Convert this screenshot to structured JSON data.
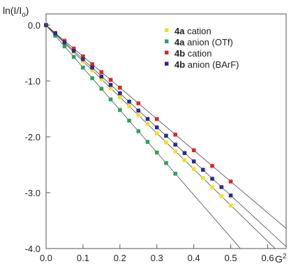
{
  "chart_data": {
    "type": "scatter",
    "ylabel_parts": {
      "main": "ln(I/I",
      "sub": "o",
      "close": ")"
    },
    "xlabel": "G",
    "xlabel_sup": "2",
    "xlim": [
      0,
      0.65
    ],
    "ylim": [
      -4.0,
      0.2
    ],
    "x_ticks": [
      0.0,
      0.1,
      0.2,
      0.3,
      0.4,
      0.5,
      0.6
    ],
    "x_tick_labels": [
      "0.0",
      "0.1",
      "0.2",
      "0.3",
      "0.4",
      "0.5",
      "0.6"
    ],
    "y_ticks": [
      0.0,
      -1.0,
      -2.0,
      -3.0,
      -4.0
    ],
    "y_tick_labels": [
      "0.0",
      "-1.0",
      "-2.0",
      "-3.0",
      "-4.0"
    ],
    "grid": false,
    "legend_position": "top-right",
    "series": [
      {
        "name_bold": "4a",
        "name_rest": " cation",
        "color": "#f0e020",
        "slope": -6.45,
        "x": [
          0.0,
          0.025,
          0.05,
          0.075,
          0.1,
          0.125,
          0.15,
          0.175,
          0.2,
          0.225,
          0.25,
          0.275,
          0.3,
          0.325,
          0.35,
          0.375,
          0.4,
          0.425,
          0.45,
          0.475,
          0.5
        ],
        "y": [
          0.0,
          -0.16,
          -0.32,
          -0.48,
          -0.65,
          -0.81,
          -0.97,
          -1.13,
          -1.29,
          -1.45,
          -1.61,
          -1.77,
          -1.94,
          -2.1,
          -2.26,
          -2.42,
          -2.58,
          -2.74,
          -2.9,
          -3.06,
          -3.23
        ]
      },
      {
        "name_bold": "4a",
        "name_rest": " anion (OTf)",
        "color": "#2aa35a",
        "slope": -7.6,
        "x": [
          0.0,
          0.025,
          0.05,
          0.075,
          0.1,
          0.125,
          0.15,
          0.175,
          0.2,
          0.225,
          0.25,
          0.275,
          0.3,
          0.325,
          0.35
        ],
        "y": [
          0.0,
          -0.19,
          -0.38,
          -0.57,
          -0.76,
          -0.95,
          -1.14,
          -1.33,
          -1.52,
          -1.71,
          -1.9,
          -2.09,
          -2.28,
          -2.47,
          -2.66
        ]
      },
      {
        "name_bold": "4b",
        "name_rest": " cation",
        "color": "#d42a2a",
        "slope": -5.6,
        "x": [
          0.0,
          0.025,
          0.05,
          0.075,
          0.1,
          0.125,
          0.15,
          0.175,
          0.2,
          0.25,
          0.3,
          0.35,
          0.4,
          0.45,
          0.5
        ],
        "y": [
          0.0,
          -0.14,
          -0.28,
          -0.42,
          -0.56,
          -0.7,
          -0.84,
          -0.98,
          -1.12,
          -1.4,
          -1.68,
          -1.96,
          -2.24,
          -2.52,
          -2.8
        ]
      },
      {
        "name_bold": "4b",
        "name_rest": " anion (BArF)",
        "color": "#2b2b90",
        "slope": -6.1,
        "x": [
          0.0,
          0.025,
          0.05,
          0.075,
          0.1,
          0.125,
          0.15,
          0.175,
          0.2,
          0.225,
          0.25,
          0.275,
          0.3,
          0.325,
          0.35,
          0.375,
          0.4,
          0.425,
          0.45,
          0.475,
          0.5
        ],
        "y": [
          0.0,
          -0.15,
          -0.31,
          -0.46,
          -0.61,
          -0.76,
          -0.92,
          -1.07,
          -1.22,
          -1.37,
          -1.53,
          -1.68,
          -1.83,
          -1.98,
          -2.14,
          -2.29,
          -2.44,
          -2.59,
          -2.75,
          -2.9,
          -3.05
        ]
      }
    ]
  }
}
